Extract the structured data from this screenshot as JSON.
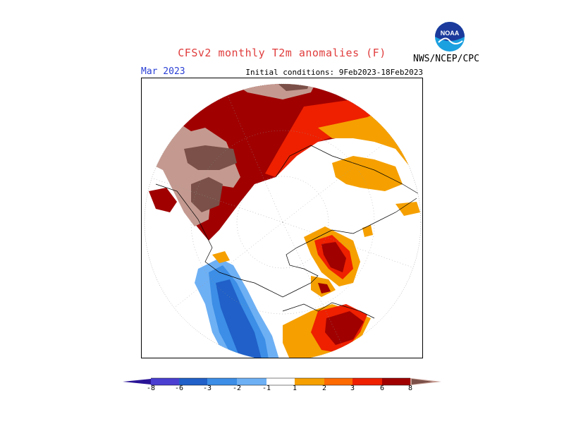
{
  "header": {
    "title": "CFSv2 monthly T2m anomalies (F)",
    "month": "Mar 2023",
    "initial_conditions": "Initial conditions: 9Feb2023-18Feb2023",
    "agency": "NWS/NCEP/CPC",
    "logo_text": "NOAA"
  },
  "colors": {
    "title": "#e03c3c",
    "month": "#2a3fd4",
    "bins": [
      "#2a1496",
      "#4a3fd0",
      "#2060c8",
      "#3c8ee6",
      "#6eb0f4",
      "#ffffff",
      "#f5a000",
      "#ff6a00",
      "#ee2000",
      "#a00000",
      "#c49a90",
      "#7a5048"
    ]
  },
  "legend": {
    "labels": [
      "-8",
      "-6",
      "-3",
      "-2",
      "-1",
      "1",
      "2",
      "3",
      "6",
      "8"
    ]
  }
}
